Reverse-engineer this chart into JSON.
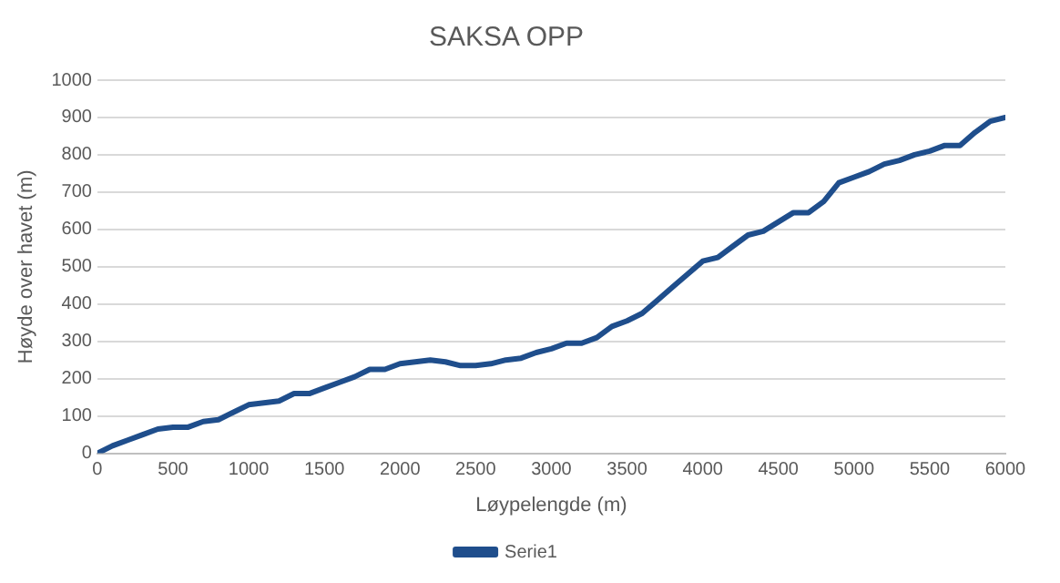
{
  "chart_data": {
    "type": "line",
    "title": "SAKSA OPP",
    "xlabel": "Løypelengde (m)",
    "ylabel": "Høyde over havet (m)",
    "x": [
      0,
      100,
      200,
      300,
      400,
      500,
      600,
      700,
      800,
      900,
      1000,
      1100,
      1200,
      1300,
      1400,
      1500,
      1600,
      1700,
      1800,
      1900,
      2000,
      2100,
      2200,
      2300,
      2400,
      2500,
      2600,
      2700,
      2800,
      2900,
      3000,
      3100,
      3200,
      3300,
      3400,
      3500,
      3600,
      3700,
      3800,
      3900,
      4000,
      4100,
      4200,
      4300,
      4400,
      4500,
      4600,
      4700,
      4800,
      4900,
      5000,
      5100,
      5200,
      5300,
      5400,
      5500,
      5600,
      5700,
      5800,
      5900,
      6000
    ],
    "series": [
      {
        "name": "Serie1",
        "color": "#1f4e8c",
        "values": [
          0,
          20,
          35,
          50,
          65,
          70,
          70,
          85,
          90,
          110,
          130,
          135,
          140,
          160,
          160,
          175,
          190,
          205,
          225,
          225,
          240,
          245,
          250,
          245,
          235,
          235,
          240,
          250,
          255,
          270,
          280,
          295,
          295,
          310,
          340,
          355,
          375,
          410,
          445,
          480,
          515,
          525,
          555,
          585,
          595,
          620,
          645,
          645,
          675,
          725,
          740,
          755,
          775,
          785,
          800,
          810,
          825,
          825,
          860,
          890,
          900
        ]
      }
    ],
    "xlim": [
      0,
      6000
    ],
    "xticks": [
      0,
      500,
      1000,
      1500,
      2000,
      2500,
      3000,
      3500,
      4000,
      4500,
      5000,
      5500,
      6000
    ],
    "ylim": [
      0,
      1000
    ],
    "yticks": [
      0,
      100,
      200,
      300,
      400,
      500,
      600,
      700,
      800,
      900,
      1000
    ],
    "grid": "y",
    "legend": "bottom",
    "marker": "none",
    "line_style": "solid"
  }
}
